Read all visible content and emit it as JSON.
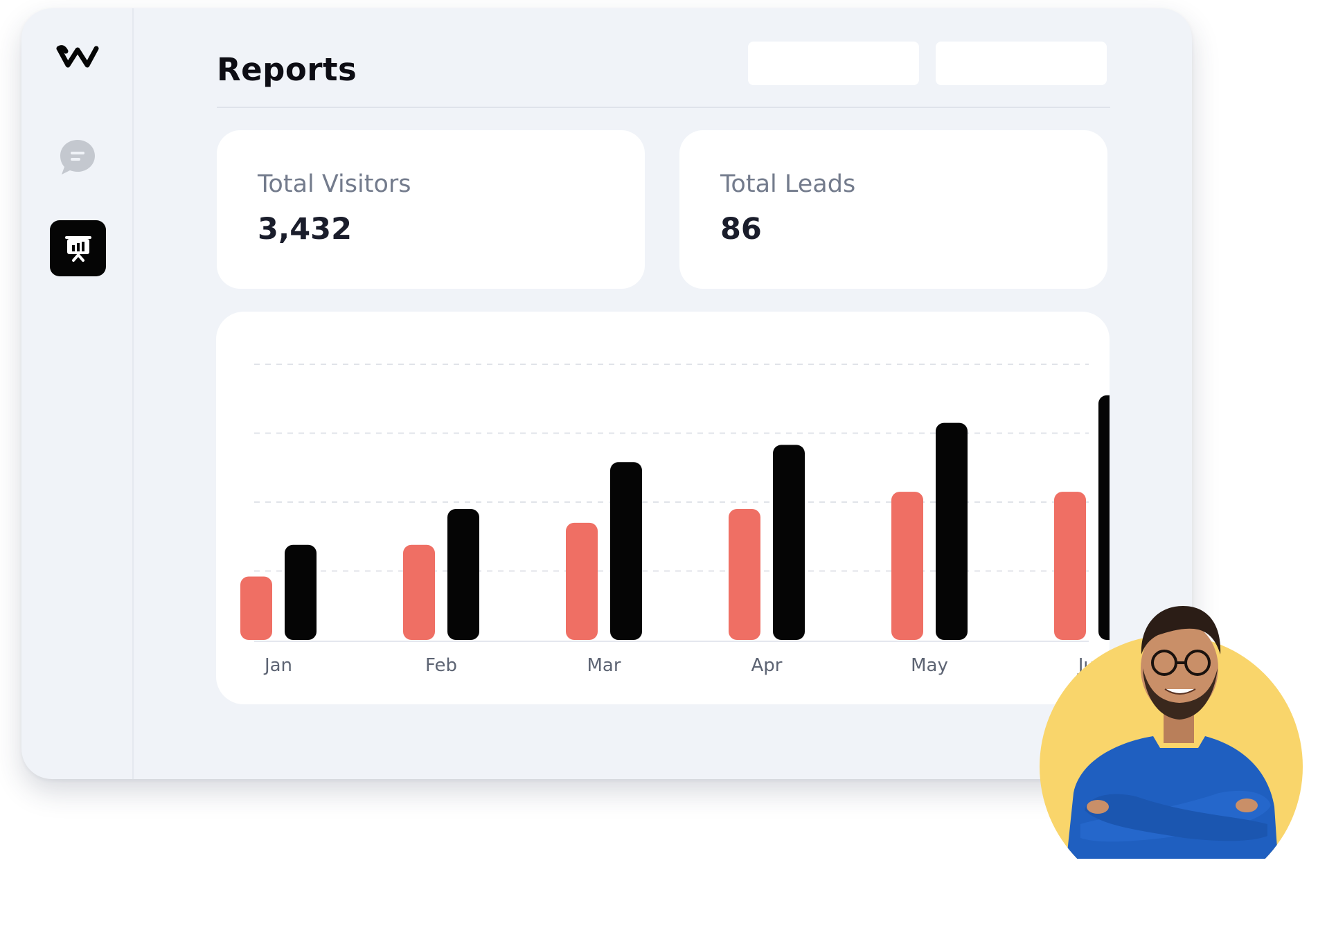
{
  "app": {
    "title": "Reports"
  },
  "sidebar": {
    "items": [
      {
        "name": "logo",
        "icon": "w-logo-icon"
      },
      {
        "name": "chat",
        "icon": "chat-bubble-icon"
      },
      {
        "name": "reports",
        "icon": "presentation-chart-icon",
        "active": true
      }
    ]
  },
  "header": {
    "buttons": [
      "",
      ""
    ]
  },
  "stats": {
    "visitors": {
      "label": "Total Visitors",
      "value": "3,432"
    },
    "leads": {
      "label": "Total Leads",
      "value": "86"
    }
  },
  "colors": {
    "series_light": "#ef6f64",
    "series_dark": "#050505",
    "accent_bg": "#f0f3f8",
    "avatar_circle": "#f9d56b",
    "avatar_shirt": "#1f5fc0"
  },
  "chart_data": {
    "type": "bar",
    "title": "",
    "xlabel": "",
    "ylabel": "",
    "categories": [
      "Jan",
      "Feb",
      "Mar",
      "Apr",
      "May",
      "Jun"
    ],
    "ylim": [
      0,
      4
    ],
    "grid": true,
    "series": [
      {
        "values": [
          0.92,
          1.38,
          1.7,
          1.9,
          2.15,
          2.15
        ]
      },
      {
        "values": [
          1.38,
          1.9,
          2.58,
          2.83,
          3.15,
          3.55
        ]
      }
    ]
  }
}
